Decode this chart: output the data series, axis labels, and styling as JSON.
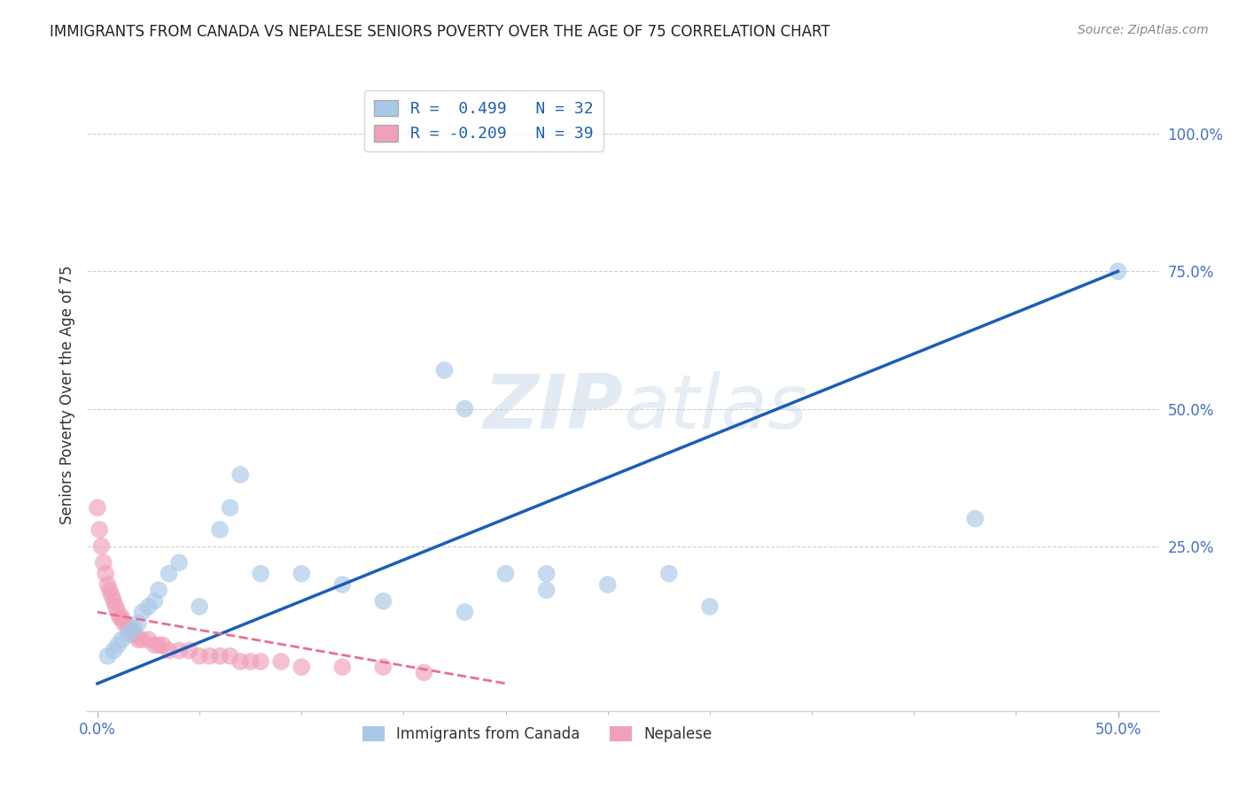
{
  "title": "IMMIGRANTS FROM CANADA VS NEPALESE SENIORS POVERTY OVER THE AGE OF 75 CORRELATION CHART",
  "source": "Source: ZipAtlas.com",
  "ylabel": "Seniors Poverty Over the Age of 75",
  "xlim": [
    -0.005,
    0.52
  ],
  "ylim": [
    -0.05,
    1.1
  ],
  "xtick_positions": [
    0.0,
    0.5
  ],
  "xticklabels": [
    "0.0%",
    "50.0%"
  ],
  "ytick_positions": [
    0.25,
    0.5,
    0.75,
    1.0
  ],
  "yticklabels": [
    "25.0%",
    "50.0%",
    "75.0%",
    "100.0%"
  ],
  "legend_r1": "R =  0.499   N = 32",
  "legend_r2": "R = -0.209   N = 39",
  "canada_color": "#a8c8e8",
  "nepal_color": "#f0a0b8",
  "canada_line_color": "#1a5eb8",
  "nepal_line_color": "#e87090",
  "watermark_text": "ZIPatlas",
  "canada_x": [
    0.005,
    0.008,
    0.01,
    0.012,
    0.015,
    0.018,
    0.02,
    0.022,
    0.025,
    0.028,
    0.03,
    0.035,
    0.04,
    0.05,
    0.06,
    0.065,
    0.07,
    0.08,
    0.1,
    0.12,
    0.14,
    0.17,
    0.18,
    0.2,
    0.22,
    0.25,
    0.28,
    0.3,
    0.5,
    0.43,
    0.22,
    0.18
  ],
  "canada_y": [
    0.05,
    0.06,
    0.07,
    0.08,
    0.09,
    0.1,
    0.11,
    0.13,
    0.14,
    0.15,
    0.17,
    0.2,
    0.22,
    0.14,
    0.28,
    0.32,
    0.38,
    0.2,
    0.2,
    0.18,
    0.15,
    0.57,
    0.5,
    0.2,
    0.2,
    0.18,
    0.2,
    0.14,
    0.75,
    0.3,
    0.17,
    0.13
  ],
  "nepal_x": [
    0.0,
    0.001,
    0.002,
    0.003,
    0.004,
    0.005,
    0.006,
    0.007,
    0.008,
    0.009,
    0.01,
    0.011,
    0.012,
    0.013,
    0.015,
    0.016,
    0.017,
    0.018,
    0.02,
    0.022,
    0.025,
    0.028,
    0.03,
    0.032,
    0.035,
    0.04,
    0.045,
    0.05,
    0.055,
    0.06,
    0.065,
    0.07,
    0.075,
    0.08,
    0.09,
    0.1,
    0.12,
    0.14,
    0.16
  ],
  "nepal_y": [
    0.32,
    0.28,
    0.25,
    0.22,
    0.2,
    0.18,
    0.17,
    0.16,
    0.15,
    0.14,
    0.13,
    0.12,
    0.12,
    0.11,
    0.1,
    0.1,
    0.09,
    0.09,
    0.08,
    0.08,
    0.08,
    0.07,
    0.07,
    0.07,
    0.06,
    0.06,
    0.06,
    0.05,
    0.05,
    0.05,
    0.05,
    0.04,
    0.04,
    0.04,
    0.04,
    0.03,
    0.03,
    0.03,
    0.02
  ],
  "canada_trendline_x": [
    0.0,
    0.5
  ],
  "canada_trendline_y": [
    0.0,
    0.75
  ],
  "nepal_trendline_x": [
    0.0,
    0.2
  ],
  "nepal_trendline_y": [
    0.13,
    0.0
  ]
}
